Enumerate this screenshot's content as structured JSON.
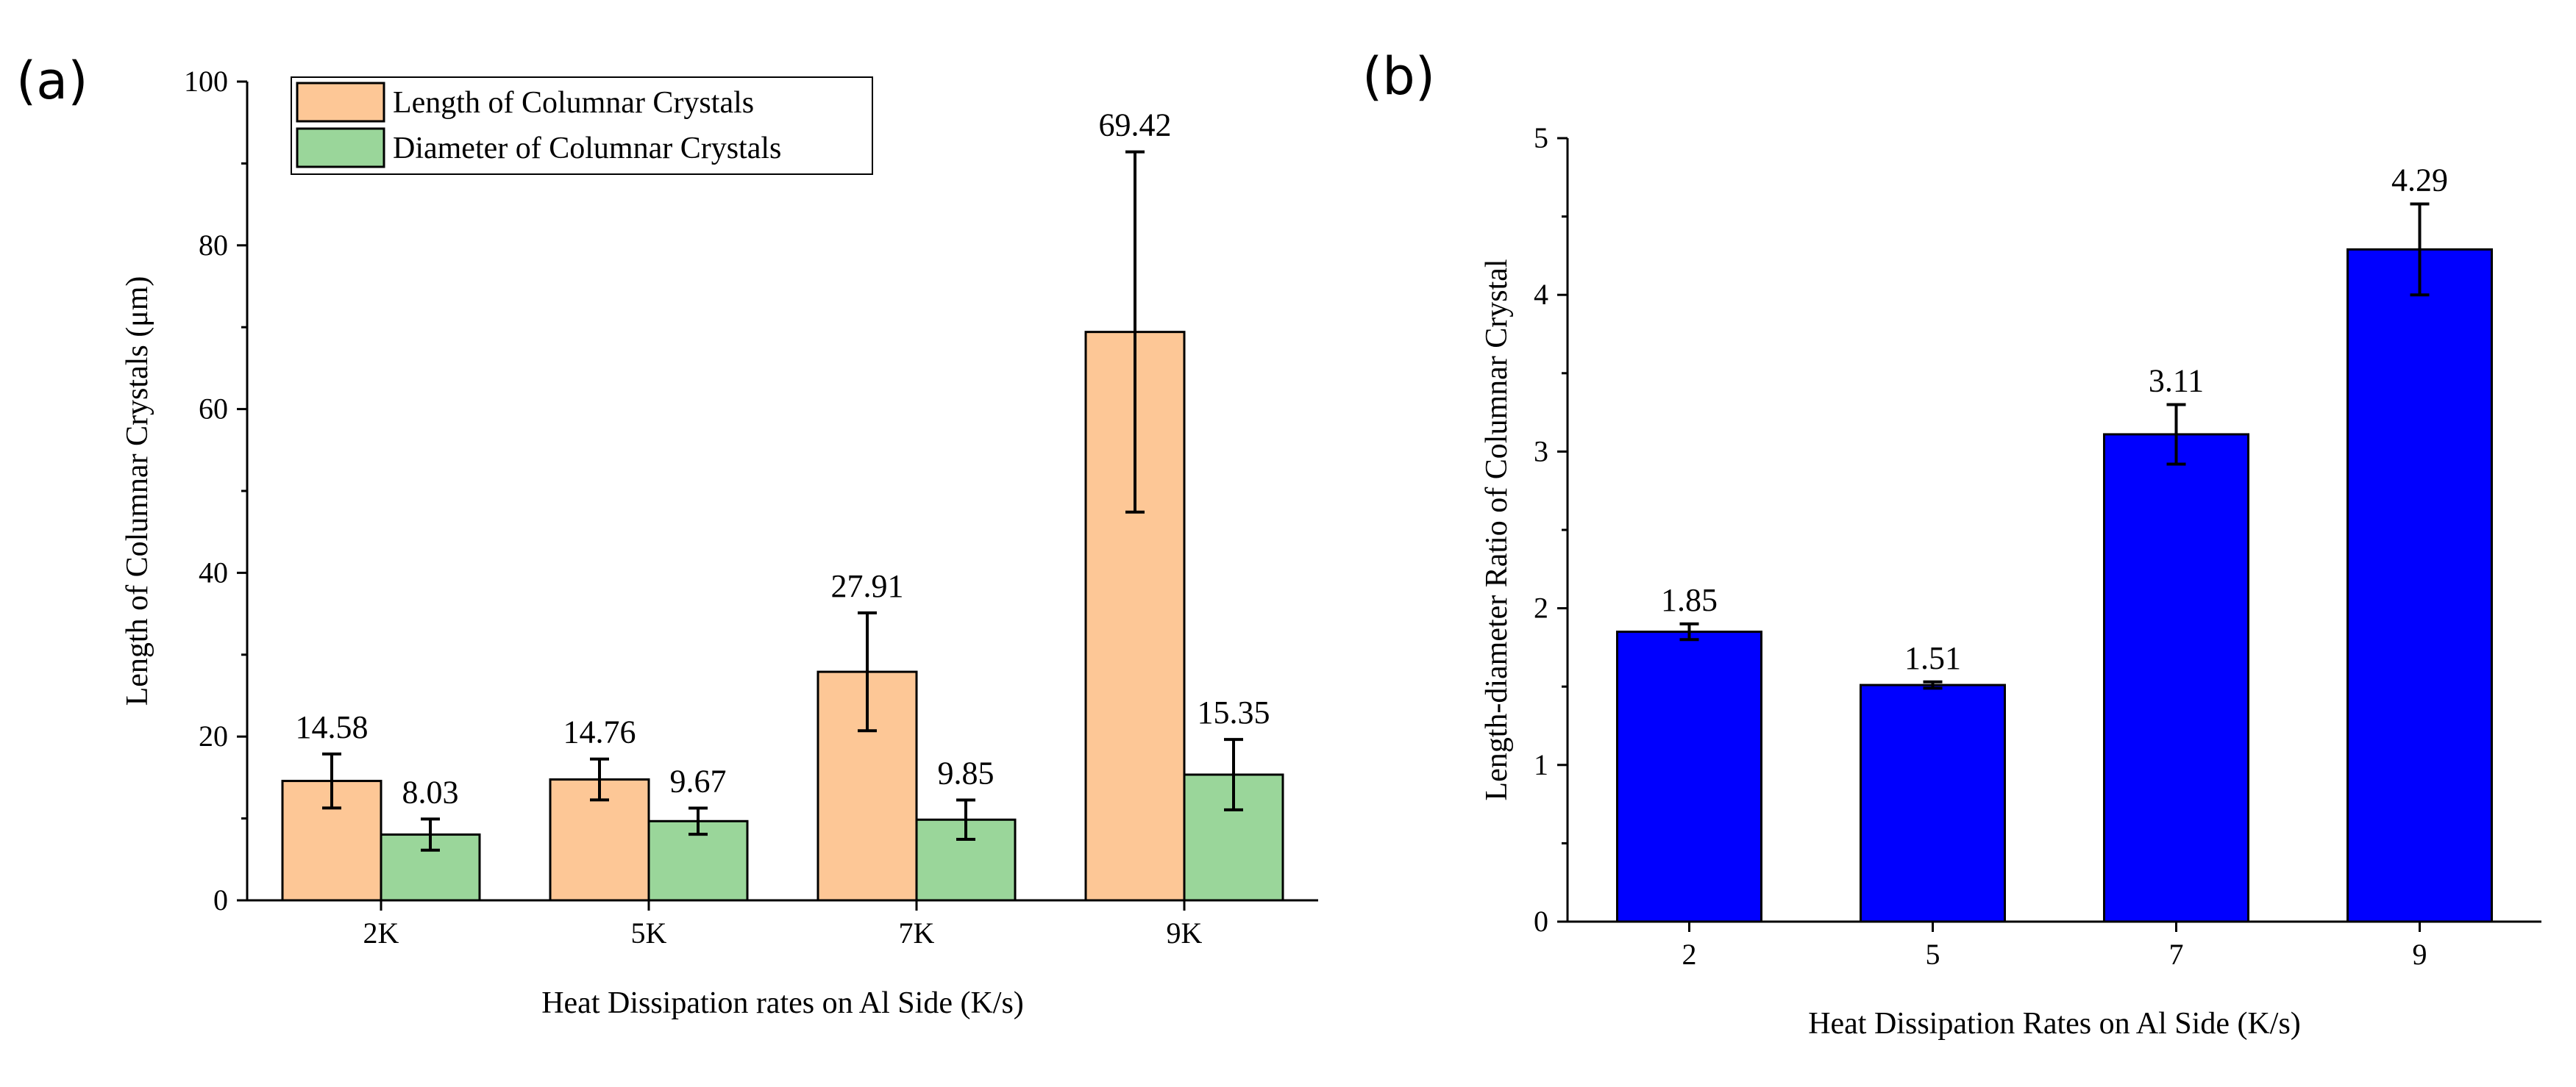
{
  "chart_data": [
    {
      "type": "bar",
      "panel_label": "(a)",
      "categories": [
        "2K",
        "5K",
        "7K",
        "9K"
      ],
      "series": [
        {
          "name": "Length of Columnar Crystals",
          "color": "#FDC796",
          "values": [
            14.58,
            14.76,
            27.91,
            69.42
          ],
          "errors": [
            3.3,
            2.5,
            7.2,
            22.0
          ],
          "labels": [
            "14.58",
            "14.76",
            "27.91",
            "69.42"
          ]
        },
        {
          "name": "Diameter of Columnar Crystals",
          "color": "#9AD69A",
          "values": [
            8.03,
            9.67,
            9.85,
            15.35
          ],
          "errors": [
            1.9,
            1.6,
            2.4,
            4.3
          ],
          "labels": [
            "8.03",
            "9.67",
            "9.85",
            "15.35"
          ]
        }
      ],
      "xlabel": "Heat Dissipation rates on Al Side (K/s)",
      "ylabel": "Length of Columnar Crystals (μm)",
      "ylim": [
        0,
        100
      ],
      "yticks": [
        0,
        20,
        40,
        60,
        80,
        100
      ],
      "legend": "top-left",
      "grid": false
    },
    {
      "type": "bar",
      "panel_label": "(b)",
      "categories": [
        "2",
        "5",
        "7",
        "9"
      ],
      "series": [
        {
          "color": "#0000FF",
          "values": [
            1.85,
            1.51,
            3.11,
            4.29
          ],
          "errors": [
            0.05,
            0.02,
            0.19,
            0.29
          ],
          "labels": [
            "1.85",
            "1.51",
            "3.11",
            "4.29"
          ]
        }
      ],
      "xlabel": "Heat Dissipation Rates on Al Side (K/s)",
      "ylabel": "Length-diameter Ratio of Columnar Crystal",
      "ylim": [
        0,
        5
      ],
      "yticks": [
        0,
        1,
        2,
        3,
        4,
        5
      ],
      "legend": "none",
      "grid": false
    }
  ]
}
